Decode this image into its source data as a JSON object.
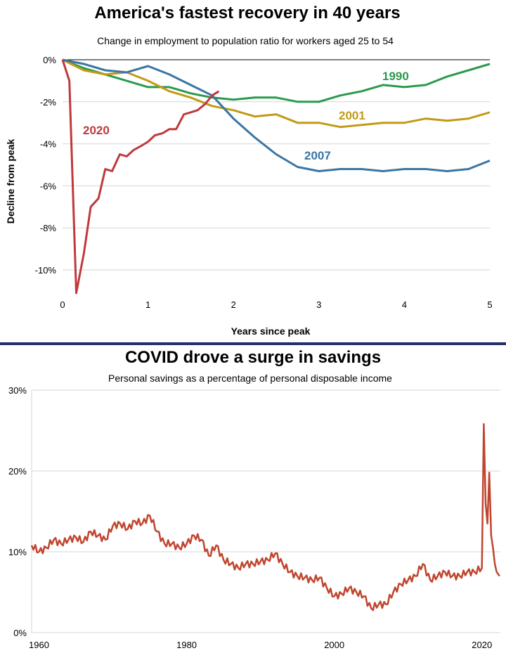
{
  "colors": {
    "1990": "#2a9a4e",
    "2001": "#c29a17",
    "2007": "#3a76a4",
    "2020": "#c0393b",
    "savings": "#c0452f",
    "divider": "#232f69"
  },
  "chart_data": [
    {
      "type": "line",
      "title": "America's fastest recovery in 40 years",
      "subtitle": "Change in employment to population ratio for workers aged 25 to 54",
      "xlabel": "Years since peak",
      "ylabel": "Decline from peak",
      "xlim": [
        0,
        5
      ],
      "ylim": [
        -11,
        0
      ],
      "x_ticks": [
        "0",
        "1",
        "2",
        "3",
        "4",
        "5"
      ],
      "y_ticks": [
        "0%",
        "-2%",
        "-4%",
        "-6%",
        "-8%",
        "-10%"
      ],
      "grid": true,
      "series": [
        {
          "name": "1990",
          "color_key": "1990",
          "x": [
            0,
            0.25,
            0.5,
            0.75,
            1.0,
            1.25,
            1.5,
            1.75,
            2.0,
            2.25,
            2.5,
            2.75,
            3.0,
            3.25,
            3.5,
            3.75,
            4.0,
            4.25,
            4.5,
            4.75,
            5.0
          ],
          "values": [
            0,
            -0.4,
            -0.7,
            -1.0,
            -1.3,
            -1.3,
            -1.6,
            -1.8,
            -1.9,
            -1.8,
            -1.8,
            -2.0,
            -2.0,
            -1.7,
            -1.5,
            -1.2,
            -1.3,
            -1.2,
            -0.8,
            -0.5,
            -0.2
          ]
        },
        {
          "name": "2001",
          "color_key": "2001",
          "x": [
            0,
            0.25,
            0.5,
            0.75,
            1.0,
            1.25,
            1.5,
            1.75,
            2.0,
            2.25,
            2.5,
            2.75,
            3.0,
            3.25,
            3.5,
            3.75,
            4.0,
            4.25,
            4.5,
            4.75,
            5.0
          ],
          "values": [
            0,
            -0.5,
            -0.7,
            -0.6,
            -1.0,
            -1.5,
            -1.8,
            -2.2,
            -2.4,
            -2.7,
            -2.6,
            -3.0,
            -3.0,
            -3.2,
            -3.1,
            -3.0,
            -3.0,
            -2.8,
            -2.9,
            -2.8,
            -2.5
          ]
        },
        {
          "name": "2007",
          "color_key": "2007",
          "x": [
            0,
            0.25,
            0.5,
            0.75,
            1.0,
            1.25,
            1.5,
            1.75,
            2.0,
            2.25,
            2.5,
            2.75,
            3.0,
            3.25,
            3.5,
            3.75,
            4.0,
            4.25,
            4.5,
            4.75,
            5.0
          ],
          "values": [
            0,
            -0.2,
            -0.5,
            -0.6,
            -0.3,
            -0.7,
            -1.2,
            -1.7,
            -2.8,
            -3.7,
            -4.5,
            -5.1,
            -5.3,
            -5.2,
            -5.2,
            -5.3,
            -5.2,
            -5.2,
            -5.3,
            -5.2,
            -4.8
          ]
        },
        {
          "name": "2020",
          "color_key": "2020",
          "x": [
            0,
            0.08,
            0.16,
            0.25,
            0.33,
            0.42,
            0.5,
            0.58,
            0.67,
            0.75,
            0.83,
            0.92,
            1.0,
            1.08,
            1.17,
            1.25,
            1.33,
            1.42,
            1.5,
            1.58,
            1.67,
            1.75,
            1.83
          ],
          "values": [
            0,
            -1.0,
            -11.1,
            -9.2,
            -7.0,
            -6.6,
            -5.2,
            -5.3,
            -4.5,
            -4.6,
            -4.3,
            -4.1,
            -3.9,
            -3.6,
            -3.5,
            -3.3,
            -3.3,
            -2.6,
            -2.5,
            -2.4,
            -2.1,
            -1.7,
            -1.5
          ]
        }
      ],
      "annotations": [
        "1990",
        "2001",
        "2007",
        "2020"
      ]
    },
    {
      "type": "line",
      "title": "COVID drove a surge in savings",
      "subtitle": "Personal savings as a percentage of personal disposable income",
      "xlim": [
        1959,
        2022.5
      ],
      "ylim": [
        0,
        30
      ],
      "x_ticks": [
        "1960",
        "1980",
        "2000",
        "2020"
      ],
      "y_ticks": [
        "30%",
        "20%",
        "10%",
        "0%"
      ],
      "grid": true,
      "series": [
        {
          "name": "",
          "color_key": "savings",
          "x": [
            1959,
            1960,
            1961,
            1962,
            1963,
            1964,
            1965,
            1966,
            1967,
            1968,
            1969,
            1970,
            1971,
            1972,
            1973,
            1974,
            1975,
            1976,
            1977,
            1978,
            1979,
            1980,
            1981,
            1982,
            1983,
            1984,
            1985,
            1986,
            1987,
            1988,
            1989,
            1990,
            1991,
            1992,
            1993,
            1994,
            1995,
            1996,
            1997,
            1998,
            1999,
            2000,
            2001,
            2002,
            2003,
            2004,
            2005,
            2006,
            2007,
            2008,
            2009,
            2010,
            2011,
            2012,
            2013,
            2014,
            2015,
            2016,
            2017,
            2018,
            2019,
            2020,
            2020.25,
            2020.5,
            2020.75,
            2021,
            2021.25,
            2021.5,
            2021.75,
            2022,
            2022.4
          ],
          "values": [
            10.8,
            10.0,
            10.5,
            11.5,
            11.0,
            11.5,
            11.8,
            11.2,
            12.5,
            12.0,
            11.5,
            13.2,
            13.5,
            12.8,
            13.8,
            13.5,
            14.5,
            12.5,
            11.0,
            11.0,
            10.5,
            11.0,
            12.0,
            11.5,
            9.5,
            10.8,
            9.0,
            8.5,
            8.0,
            8.5,
            8.5,
            8.8,
            9.0,
            9.8,
            8.5,
            7.5,
            7.0,
            6.8,
            6.5,
            6.8,
            5.5,
            4.5,
            4.8,
            5.5,
            5.0,
            4.5,
            3.0,
            3.5,
            3.5,
            5.0,
            6.0,
            6.5,
            7.0,
            8.5,
            6.5,
            7.0,
            7.5,
            7.0,
            7.0,
            7.5,
            7.5,
            8.0,
            25.8,
            16.0,
            13.5,
            19.8,
            12.0,
            10.5,
            8.5,
            7.5,
            7.0
          ]
        }
      ]
    }
  ]
}
